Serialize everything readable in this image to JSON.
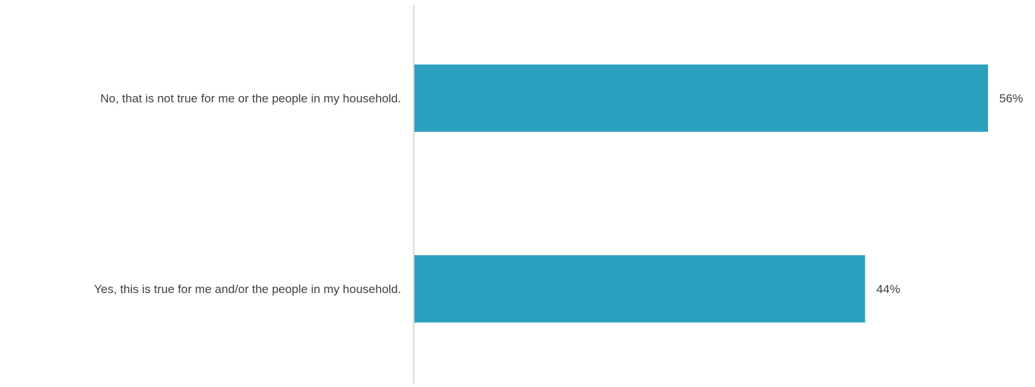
{
  "chart_data": {
    "type": "bar",
    "orientation": "horizontal",
    "categories": [
      "No, that is not true for me or the people in my household.",
      "Yes, this is true for me and/or the people in my household."
    ],
    "values": [
      56,
      44
    ],
    "value_labels": [
      "56%",
      "44%"
    ],
    "xlim": [
      0,
      56
    ],
    "grid": false,
    "legend": "none",
    "bar_color": "#2CA1BF",
    "axis_color": "#D9D9D9",
    "text_color": "#404040"
  }
}
